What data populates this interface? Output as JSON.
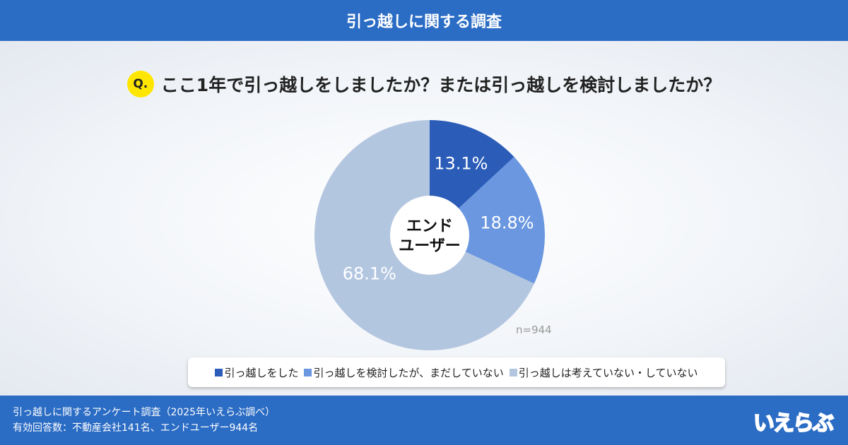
{
  "header": {
    "title": "引っ越しに関する調査"
  },
  "question": {
    "badge": "Q.",
    "text": "ここ1年で引っ越しをしましたか？または引っ越しを検討しましたか？"
  },
  "chart_data": {
    "type": "pie",
    "center_label": [
      "エンド",
      "ユーザー"
    ],
    "note": "n=944",
    "start": "top",
    "direction": "clockwise",
    "slices": [
      {
        "name": "引っ越しをした",
        "value": 13.1,
        "label": "13.1%",
        "color": "#2a5cb8"
      },
      {
        "name": "引っ越しを検討したが、まだしていない",
        "value": 18.8,
        "label": "18.8%",
        "color": "#6a97e0"
      },
      {
        "name": "引っ越しは考えていない・していない",
        "value": 68.1,
        "label": "68.1%",
        "color": "#b3c6e0"
      }
    ],
    "legend_placement": "bottom"
  },
  "footer": {
    "line1": "引っ越しに関するアンケート調査（2025年いえらぶ調べ）",
    "line2": "有効回答数：不動産会社141名、エンドユーザー944名",
    "logo": "いえらぶ"
  }
}
